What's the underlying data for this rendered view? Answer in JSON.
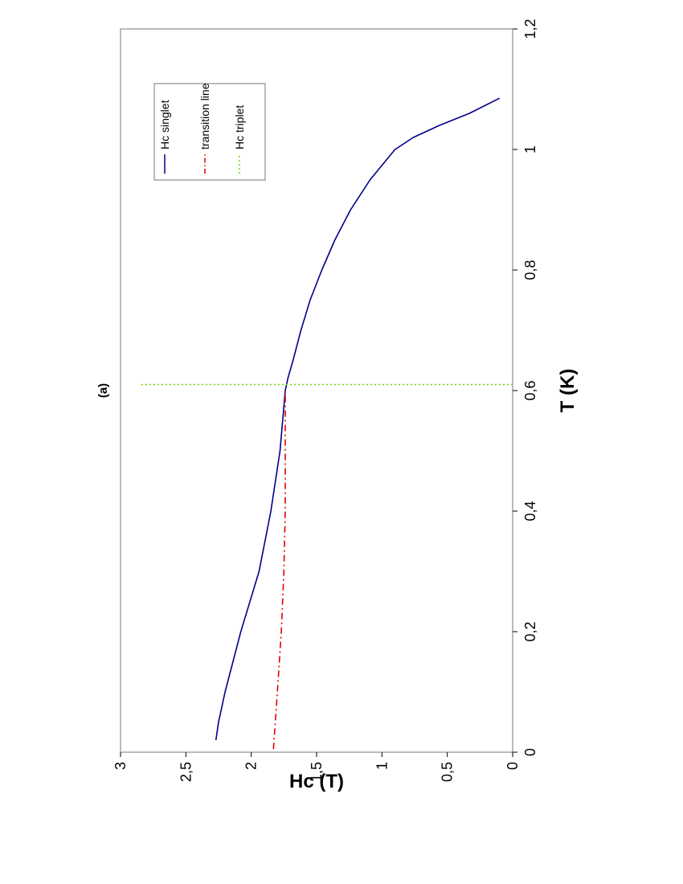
{
  "chart_data": {
    "type": "line",
    "title": "(a)",
    "xlabel": "T (K)",
    "ylabel": "Hc (T)",
    "xlim": [
      0,
      1.2
    ],
    "ylim": [
      0,
      3
    ],
    "x_ticks": [
      "0",
      "0,2",
      "0,4",
      "0,6",
      "0,8",
      "1",
      "1,2"
    ],
    "y_ticks": [
      "0",
      "0,5",
      "1",
      "1,5",
      "2",
      "2,5",
      "3"
    ],
    "grid": false,
    "legend_position": "top-right",
    "series": [
      {
        "name": "Hc singlet",
        "style": "solid",
        "color": "#00008b",
        "x": [
          0.02,
          0.05,
          0.1,
          0.2,
          0.3,
          0.4,
          0.5,
          0.6,
          0.62,
          0.65,
          0.7,
          0.75,
          0.8,
          0.85,
          0.9,
          0.95,
          1.0,
          1.02,
          1.04,
          1.06,
          1.085
        ],
        "y": [
          2.27,
          2.25,
          2.2,
          2.08,
          1.94,
          1.85,
          1.78,
          1.74,
          1.72,
          1.68,
          1.62,
          1.55,
          1.46,
          1.36,
          1.24,
          1.09,
          0.9,
          0.76,
          0.56,
          0.33,
          0.1
        ]
      },
      {
        "name": "transition line",
        "style": "dashdot",
        "color": "#e00000",
        "x": [
          0.005,
          0.1,
          0.2,
          0.3,
          0.4,
          0.5,
          0.6
        ],
        "y": [
          1.83,
          1.8,
          1.77,
          1.75,
          1.74,
          1.74,
          1.74
        ]
      },
      {
        "name": "Hc triplet",
        "style": "dotted",
        "color": "#66dd00",
        "x": [
          0.61,
          0.61
        ],
        "y": [
          0,
          2.85
        ]
      }
    ]
  }
}
